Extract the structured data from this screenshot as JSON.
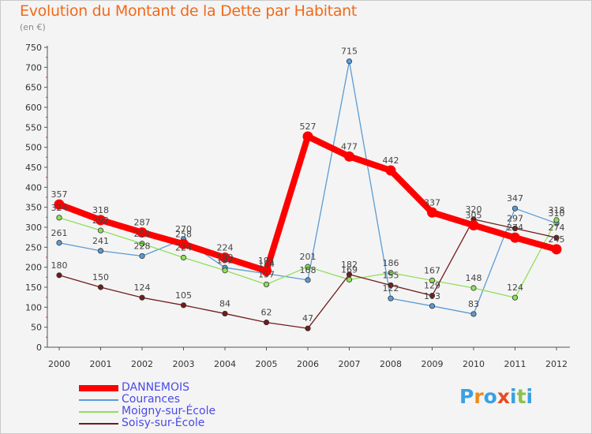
{
  "chart_data": {
    "type": "line",
    "title": "Evolution du Montant de la Dette par Habitant",
    "unit": "(en €)",
    "x": [
      "2000",
      "2001",
      "2002",
      "2003",
      "2004",
      "2005",
      "2006",
      "2007",
      "2008",
      "2009",
      "2010",
      "2011",
      "2012"
    ],
    "ylim": [
      0,
      750
    ],
    "yticks": [
      0,
      50,
      100,
      150,
      200,
      250,
      300,
      350,
      400,
      450,
      500,
      550,
      600,
      650,
      700,
      750
    ],
    "grid": false,
    "legend_position": "bottom-left",
    "series": [
      {
        "name": "DANNEMOIS",
        "color": "#ff0000",
        "values": [
          357,
          318,
          287,
          258,
          224,
          191,
          527,
          477,
          442,
          337,
          305,
          274,
          245
        ]
      },
      {
        "name": "Courances",
        "color": "#5b9bd5",
        "values": [
          261,
          241,
          228,
          270,
          199,
          184,
          168,
          715,
          122,
          103,
          83,
          347,
          310
        ]
      },
      {
        "name": "Moigny-sur-École",
        "color": "#8ee05a",
        "values": [
          324,
          292,
          259,
          224,
          192,
          157,
          201,
          169,
          186,
          167,
          148,
          124,
          318
        ]
      },
      {
        "name": "Soisy-sur-École",
        "color": "#701c1c",
        "values": [
          180,
          150,
          124,
          105,
          84,
          62,
          47,
          182,
          155,
          129,
          320,
          297,
          274
        ]
      }
    ]
  },
  "logo": {
    "text": "Proxiti",
    "letters": [
      "P",
      "r",
      "o",
      "x",
      "i",
      "t",
      "i"
    ],
    "colors": [
      "#3aa0e0",
      "#f08a1c",
      "#3aa0e0",
      "#e94a20",
      "#3aa0e0",
      "#8bc34a",
      "#3aa0e0"
    ]
  }
}
